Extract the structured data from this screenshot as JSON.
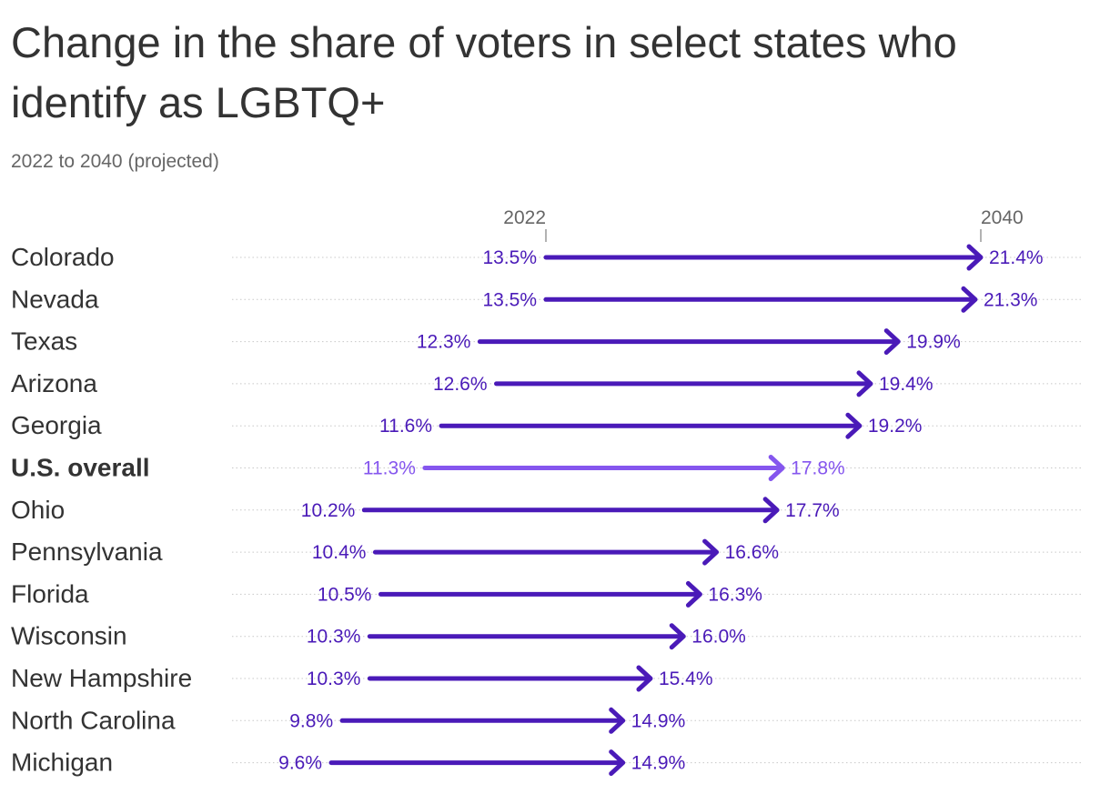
{
  "header": {
    "title": "Change in the share of voters in select states who identify as LGBTQ+",
    "subtitle": "2022 to 2040 (projected)"
  },
  "colors": {
    "state_arrow": "#4a1ab8",
    "overall_arrow": "#8556ee",
    "gridline": "#c8c8c8",
    "text": "#333333",
    "muted_text": "#666666"
  },
  "chart_data": {
    "type": "arrow-dot",
    "title": "Change in the share of voters in select states who identify as LGBTQ+",
    "subtitle": "2022 to 2040 (projected)",
    "start_label": "2022",
    "end_label": "2040",
    "unit": "%",
    "highlight": "U.S. overall",
    "rows": [
      {
        "name": "Colorado",
        "start": 13.5,
        "end": 21.4,
        "start_label": "13.5%",
        "end_label": "21.4%"
      },
      {
        "name": "Nevada",
        "start": 13.5,
        "end": 21.3,
        "start_label": "13.5%",
        "end_label": "21.3%"
      },
      {
        "name": "Texas",
        "start": 12.3,
        "end": 19.9,
        "start_label": "12.3%",
        "end_label": "19.9%"
      },
      {
        "name": "Arizona",
        "start": 12.6,
        "end": 19.4,
        "start_label": "12.6%",
        "end_label": "19.4%"
      },
      {
        "name": "Georgia",
        "start": 11.6,
        "end": 19.2,
        "start_label": "11.6%",
        "end_label": "19.2%"
      },
      {
        "name": "U.S. overall",
        "start": 11.3,
        "end": 17.8,
        "start_label": "11.3%",
        "end_label": "17.8%"
      },
      {
        "name": "Ohio",
        "start": 10.2,
        "end": 17.7,
        "start_label": "10.2%",
        "end_label": "17.7%"
      },
      {
        "name": "Pennsylvania",
        "start": 10.4,
        "end": 16.6,
        "start_label": "10.4%",
        "end_label": "16.6%"
      },
      {
        "name": "Florida",
        "start": 10.5,
        "end": 16.3,
        "start_label": "10.5%",
        "end_label": "16.3%"
      },
      {
        "name": "Wisconsin",
        "start": 10.3,
        "end": 16.0,
        "start_label": "10.3%",
        "end_label": "16.0%"
      },
      {
        "name": "New Hampshire",
        "start": 10.3,
        "end": 15.4,
        "start_label": "10.3%",
        "end_label": "15.4%"
      },
      {
        "name": "North Carolina",
        "start": 9.8,
        "end": 14.9,
        "start_label": "9.8%",
        "end_label": "14.9%"
      },
      {
        "name": "Michigan",
        "start": 9.6,
        "end": 14.9,
        "start_label": "9.6%",
        "end_label": "14.9%"
      }
    ]
  }
}
